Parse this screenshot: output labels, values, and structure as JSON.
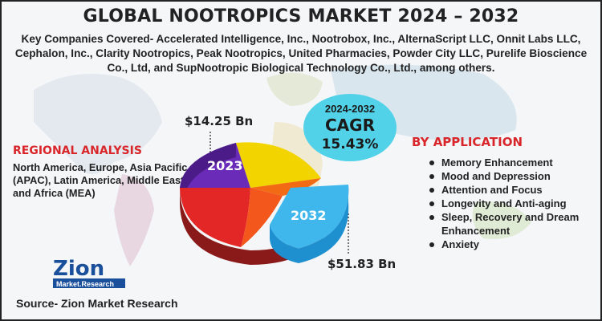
{
  "title": "GLOBAL NOOTROPICS MARKET 2024 – 2032",
  "companies_text": "Key Companies Covered- Accelerated Intelligence, Inc., Nootrobox, Inc., AlternaScript LLC, Onnit Labs LLC, Cephalon, Inc., Clarity Nootropics, Peak Nootropics, United Pharmacies, Powder City LLC, Purelife Bioscience Co., Ltd, and SupNootropic Biological Technology Co., Ltd., among others.",
  "regional": {
    "title": "REGIONAL ANALYSIS",
    "text": "North America, Europe, Asia Pacific (APAC), Latin America, Middle East, and Africa (MEA)"
  },
  "application": {
    "title": "BY APPLICATION",
    "items": [
      "Memory Enhancement",
      "Mood and Depression",
      "Attention and Focus",
      "Longevity and Anti-aging",
      "Sleep, Recovery and Dream Enhancement",
      "Anxiety"
    ]
  },
  "market": {
    "year_2023": "2023",
    "value_2023": "$14.25 Bn",
    "year_2032": "2032",
    "value_2032": "$51.83 Bn"
  },
  "cagr": {
    "period": "2024-2032",
    "label": "CAGR",
    "value": "15.43%"
  },
  "logo": {
    "name": "Zion",
    "sub": "Market.Research"
  },
  "source": "Source- Zion Market Research",
  "colors": {
    "accent_red": "#d9262a",
    "cagr_bubble": "#52d2e8",
    "slice_purple": "#6a2bb8",
    "slice_yellow": "#f2d400",
    "slice_red": "#e32626",
    "slice_orange": "#f26b14",
    "slice_blue": "#3fb6ec",
    "logo_blue": "#1a4f9c"
  }
}
